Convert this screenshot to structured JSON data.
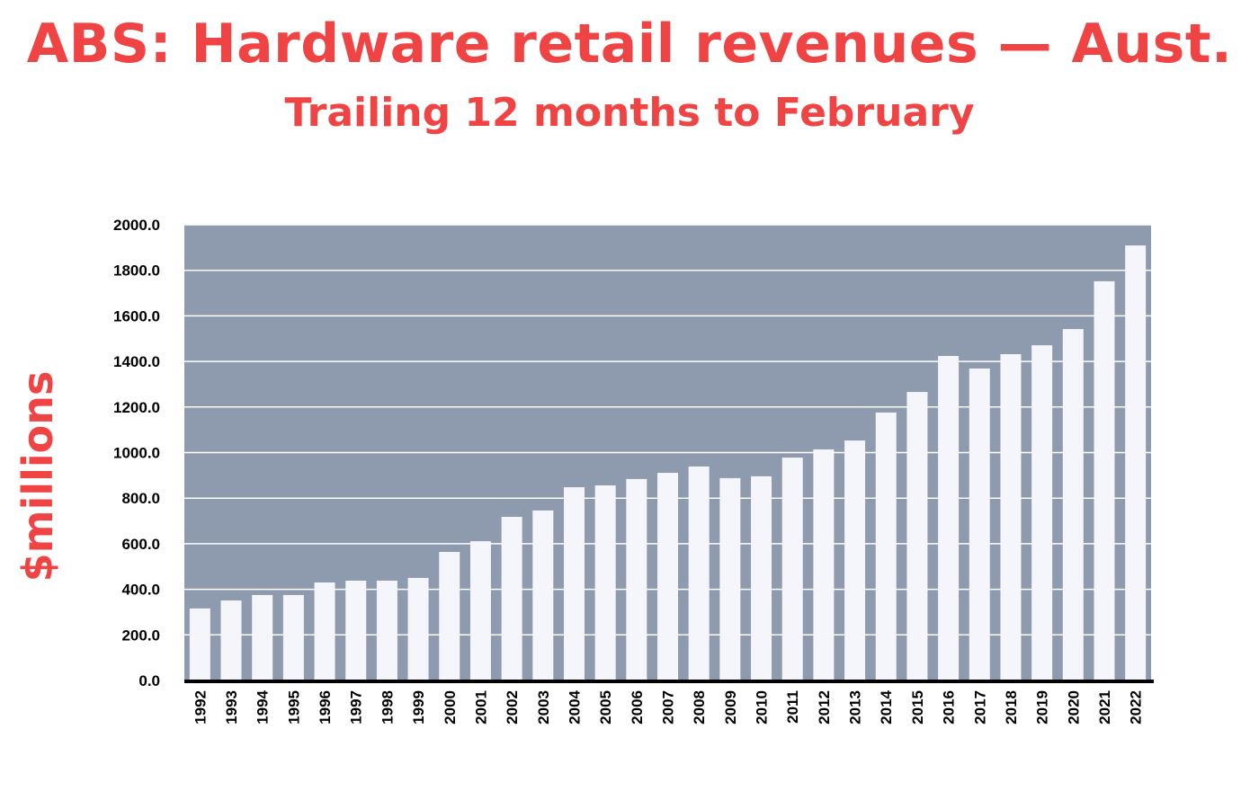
{
  "chart_data": {
    "type": "bar",
    "title": "ABS: Hardware retail revenues — Aust.",
    "subtitle": "Trailing 12 months to February",
    "xlabel": "",
    "ylabel": "$millions",
    "ylim": [
      0,
      2000
    ],
    "yticks": [
      "0.0",
      "200.0",
      "400.0",
      "600.0",
      "800.0",
      "1000.0",
      "1200.0",
      "1400.0",
      "1600.0",
      "1800.0",
      "2000.0"
    ],
    "grid": true,
    "categories": [
      "1992",
      "1993",
      "1994",
      "1995",
      "1996",
      "1997",
      "1998",
      "1999",
      "2000",
      "2001",
      "2002",
      "2003",
      "2004",
      "2005",
      "2006",
      "2007",
      "2008",
      "2009",
      "2010",
      "2011",
      "2012",
      "2013",
      "2014",
      "2015",
      "2016",
      "2017",
      "2018",
      "2019",
      "2020",
      "2021",
      "2022"
    ],
    "values": [
      316,
      351,
      375,
      375,
      430,
      438,
      438,
      450,
      564,
      611,
      718,
      746,
      848,
      856,
      884,
      911,
      939,
      888,
      896,
      978,
      1014,
      1053,
      1176,
      1266,
      1424,
      1369,
      1432,
      1471,
      1542,
      1752,
      1909
    ],
    "colors": {
      "title": "#f04444",
      "plot_bg": "#8e9aad",
      "bar": "#f5f6fc",
      "grid": "#ffffff",
      "axis": "#000000"
    }
  }
}
